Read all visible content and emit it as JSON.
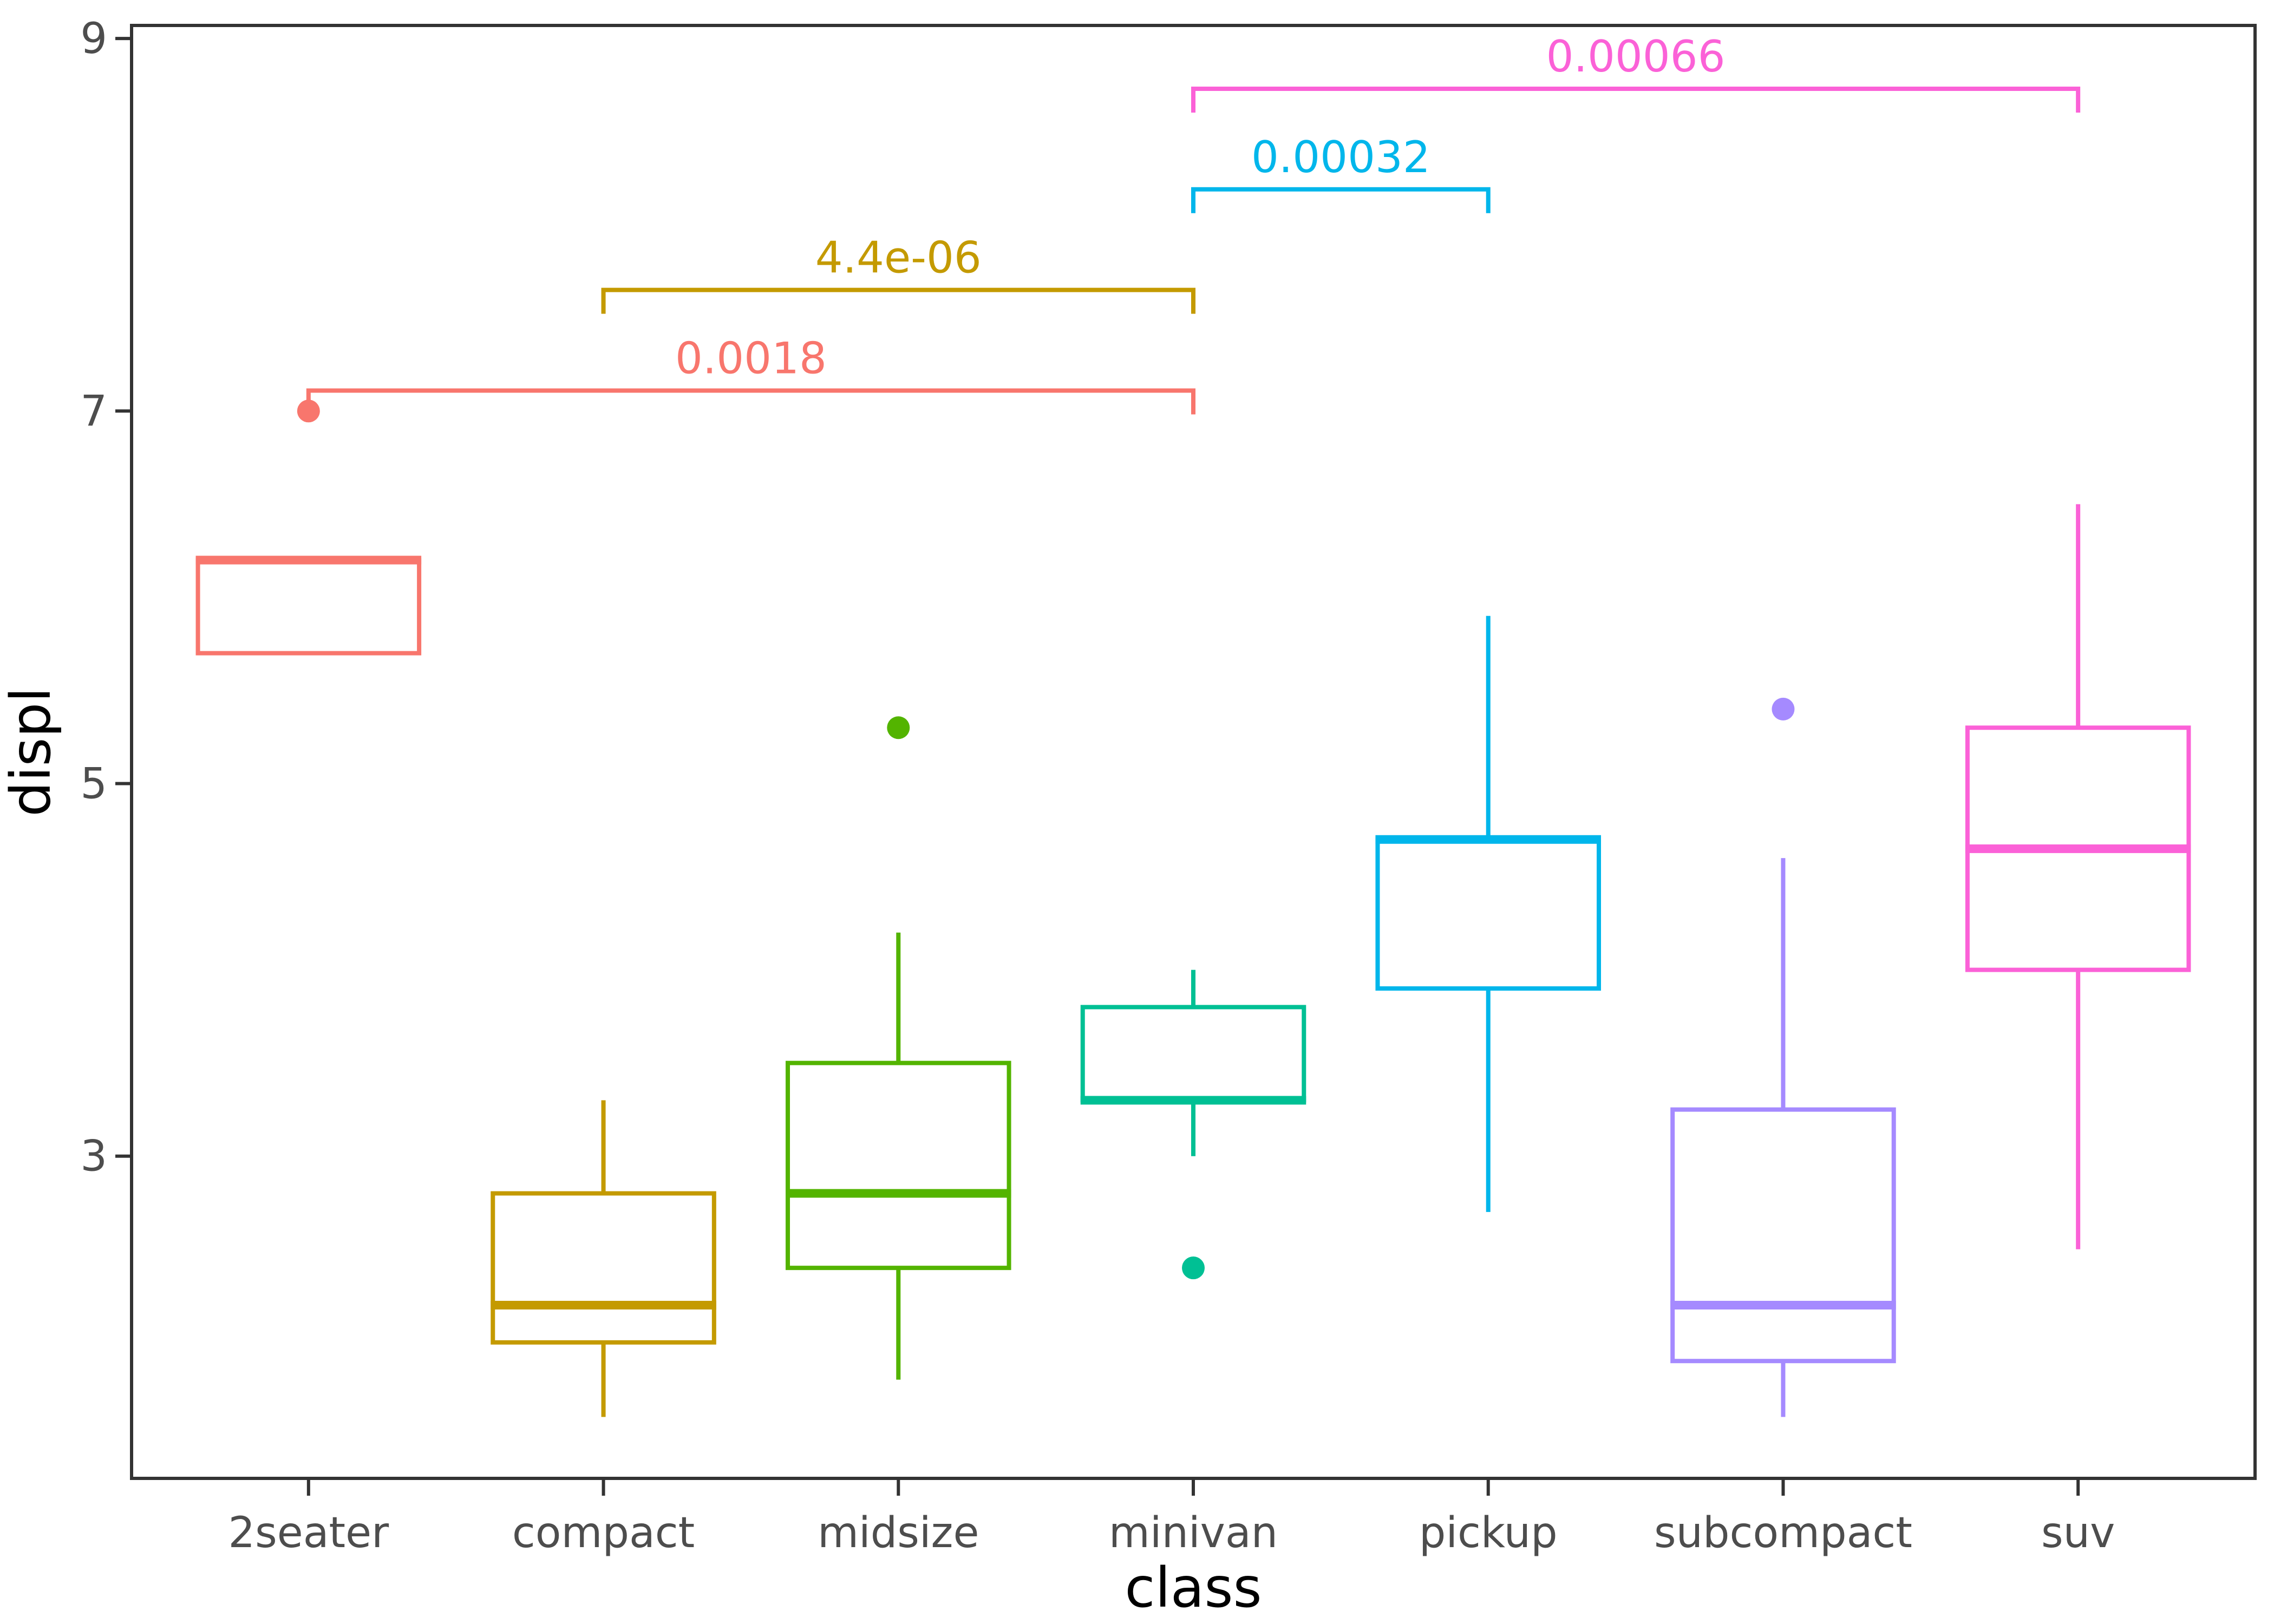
{
  "figure": {
    "background": "#ffffff"
  },
  "chart_data": {
    "type": "boxplot",
    "title": "",
    "xlabel": "class",
    "ylabel": "displ",
    "legend": "none",
    "grid": false,
    "categories": [
      "2seater",
      "compact",
      "midsize",
      "minivan",
      "pickup",
      "subcompact",
      "suv"
    ],
    "y_axis": {
      "ticks": [
        3,
        5,
        7,
        9
      ],
      "range": [
        1.27,
        9.07
      ]
    },
    "boxes": [
      {
        "category": "2seater",
        "color": "#F8766D",
        "whisker_low": 5.7,
        "q1": 5.7,
        "median": 6.2,
        "q3": 6.2,
        "whisker_high": 6.2,
        "outliers": [
          7.0
        ]
      },
      {
        "category": "compact",
        "color": "#C49A00",
        "whisker_low": 1.6,
        "q1": 2.0,
        "median": 2.2,
        "q3": 2.8,
        "whisker_high": 3.3,
        "outliers": []
      },
      {
        "category": "midsize",
        "color": "#53B400",
        "whisker_low": 1.8,
        "q1": 2.4,
        "median": 2.8,
        "q3": 3.5,
        "whisker_high": 4.2,
        "outliers": [
          5.3
        ]
      },
      {
        "category": "minivan",
        "color": "#00C094",
        "whisker_low": 3.0,
        "q1": 3.3,
        "median": 3.3,
        "q3": 3.8,
        "whisker_high": 4.0,
        "outliers": [
          2.4
        ]
      },
      {
        "category": "pickup",
        "color": "#00B6EB",
        "whisker_low": 2.7,
        "q1": 3.9,
        "median": 4.7,
        "q3": 4.7,
        "whisker_high": 5.9,
        "outliers": []
      },
      {
        "category": "subcompact",
        "color": "#A58AFF",
        "whisker_low": 1.6,
        "q1": 1.9,
        "median": 2.2,
        "q3": 3.25,
        "whisker_high": 4.6,
        "outliers": [
          5.4
        ]
      },
      {
        "category": "suv",
        "color": "#FB61D7",
        "whisker_low": 2.5,
        "q1": 4.0,
        "median": 4.65,
        "q3": 5.3,
        "whisker_high": 6.5,
        "outliers": []
      }
    ],
    "comparisons": [
      {
        "group1": "2seater",
        "group2": "minivan",
        "p_label": "0.0018",
        "y": 7.11,
        "color": "#F8766D"
      },
      {
        "group1": "compact",
        "group2": "minivan",
        "p_label": "4.4e-06",
        "y": 7.65,
        "color": "#C49A00"
      },
      {
        "group1": "minivan",
        "group2": "pickup",
        "p_label": "0.00032",
        "y": 8.19,
        "color": "#00B6EB"
      },
      {
        "group1": "minivan",
        "group2": "suv",
        "p_label": "0.00066",
        "y": 8.73,
        "color": "#FB61D7"
      }
    ],
    "styling": {
      "tick_text_color": "#4d4d4d",
      "axis_line_color": "#333333",
      "title_text_color": "#000000",
      "box_fill": "#ffffff"
    }
  }
}
